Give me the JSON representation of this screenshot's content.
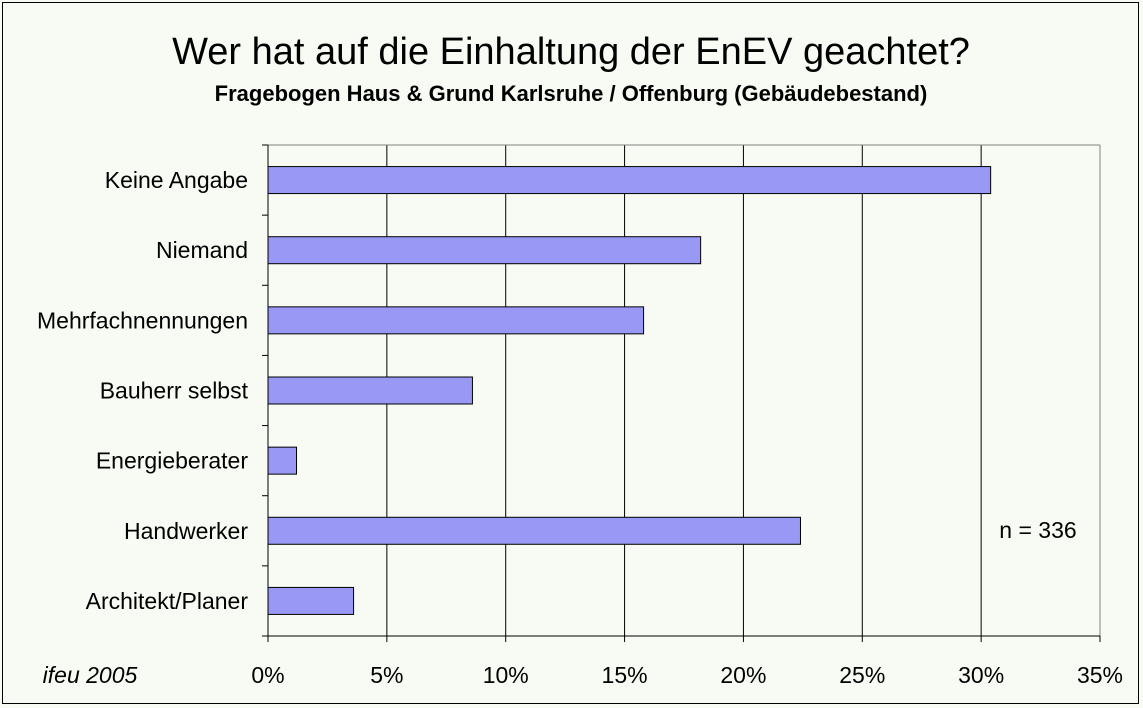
{
  "chart_data": {
    "type": "bar",
    "orientation": "horizontal",
    "title": "Wer hat auf die Einhaltung der EnEV geachtet?",
    "subtitle": "Fragebogen Haus & Grund Karlsruhe / Offenburg (Gebäudebestand)",
    "categories": [
      "Keine Angabe",
      "Niemand",
      "Mehrfachnennungen",
      "Bauherr selbst",
      "Energieberater",
      "Handwerker",
      "Architekt/Planer"
    ],
    "values": [
      30.4,
      18.2,
      15.8,
      8.6,
      1.2,
      22.4,
      3.6
    ],
    "xlim": [
      0,
      35
    ],
    "xticks": [
      0,
      5,
      10,
      15,
      20,
      25,
      30,
      35
    ],
    "xtick_labels": [
      "0%",
      "5%",
      "10%",
      "15%",
      "20%",
      "25%",
      "30%",
      "35%"
    ],
    "xlabel": "",
    "ylabel": "",
    "grid": true,
    "annotation": "n = 336",
    "source": "ifeu 2005",
    "colors": {
      "bar": "#9999F5",
      "bar_edge": "#000000",
      "plot_background": "#F8FBF4",
      "grid": "#000000"
    }
  }
}
